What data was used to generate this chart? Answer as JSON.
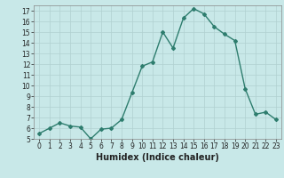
{
  "x": [
    0,
    1,
    2,
    3,
    4,
    5,
    6,
    7,
    8,
    9,
    10,
    11,
    12,
    13,
    14,
    15,
    16,
    17,
    18,
    19,
    20,
    21,
    22,
    23
  ],
  "y": [
    5.5,
    6.0,
    6.5,
    6.2,
    6.1,
    5.0,
    5.9,
    6.0,
    6.8,
    9.3,
    11.8,
    12.2,
    15.0,
    13.5,
    16.3,
    17.2,
    16.7,
    15.5,
    14.8,
    14.2,
    9.7,
    7.3,
    7.5,
    6.8
  ],
  "line_color": "#2e7d6e",
  "marker": "D",
  "marker_size": 2.0,
  "bg_color": "#c8e8e8",
  "grid_color": "#b0d0d0",
  "xlabel": "Humidex (Indice chaleur)",
  "ylim": [
    5,
    17.5
  ],
  "xlim": [
    -0.5,
    23.5
  ],
  "yticks": [
    5,
    6,
    7,
    8,
    9,
    10,
    11,
    12,
    13,
    14,
    15,
    16,
    17
  ],
  "xticks": [
    0,
    1,
    2,
    3,
    4,
    5,
    6,
    7,
    8,
    9,
    10,
    11,
    12,
    13,
    14,
    15,
    16,
    17,
    18,
    19,
    20,
    21,
    22,
    23
  ],
  "tick_fontsize": 5.5,
  "xlabel_fontsize": 7.0,
  "linewidth": 1.0
}
